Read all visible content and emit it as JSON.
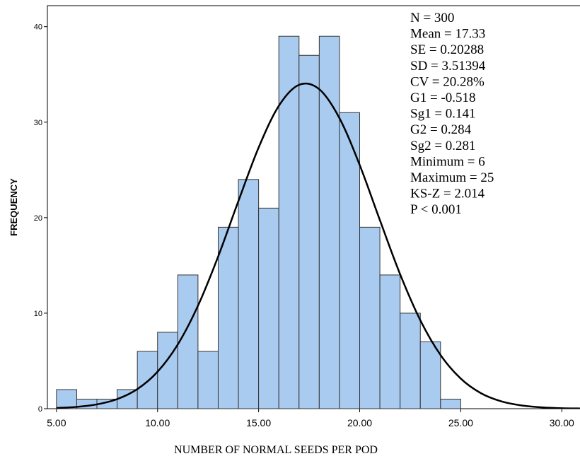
{
  "chart_data": {
    "type": "histogram",
    "x_label": "NUMBER OF NORMAL SEEDS PER POD",
    "y_label": "FREQUENCY",
    "bins": [
      5,
      6,
      7,
      8,
      9,
      10,
      11,
      12,
      13,
      14,
      15,
      16,
      17,
      18,
      19,
      20,
      21,
      22,
      23,
      24,
      25
    ],
    "counts": [
      2,
      1,
      1,
      2,
      6,
      8,
      14,
      6,
      19,
      24,
      21,
      39,
      37,
      39,
      31,
      19,
      14,
      10,
      7,
      1
    ],
    "color": "#a9cbef",
    "curve": {
      "x": [
        5,
        6,
        7,
        8,
        9,
        10,
        11,
        12,
        13,
        14,
        15,
        16,
        17,
        18,
        19,
        20,
        21,
        22,
        23,
        24,
        25,
        26,
        27,
        28,
        29,
        30,
        31
      ],
      "y": [
        0.07,
        0.19,
        0.45,
        1.0,
        2.05,
        3.87,
        6.72,
        10.78,
        15.94,
        21.74,
        27.34,
        31.71,
        33.91,
        33.45,
        30.42,
        25.52,
        19.74,
        14.08,
        9.26,
        5.62,
        3.15,
        1.62,
        0.77,
        0.34,
        0.14,
        0.05,
        0.02
      ],
      "color": "#000000"
    },
    "annotations": [
      "N = 300",
      "Mean = 17.33",
      "SE = 0.20288",
      "SD = 3.51394",
      "CV = 20.28%",
      "G1 = -0.518",
      "Sg1 = 0.141",
      "G2 = 0.284",
      "Sg2 = 0.281",
      "Minimum = 6",
      "Maximum = 25",
      "KS-Z = 2.014",
      "P < 0.001"
    ],
    "xlim": [
      4.55,
      30.9
    ],
    "ylim": [
      0,
      42.2
    ],
    "xticks": [
      {
        "value": 5,
        "label": "5.00"
      },
      {
        "value": 10,
        "label": "10.00"
      },
      {
        "value": 15,
        "label": "15.00"
      },
      {
        "value": 20,
        "label": "20.00"
      },
      {
        "value": 25,
        "label": "25.00"
      },
      {
        "value": 30,
        "label": "30.00"
      }
    ],
    "yticks": [
      0,
      10,
      20,
      30,
      40
    ]
  }
}
